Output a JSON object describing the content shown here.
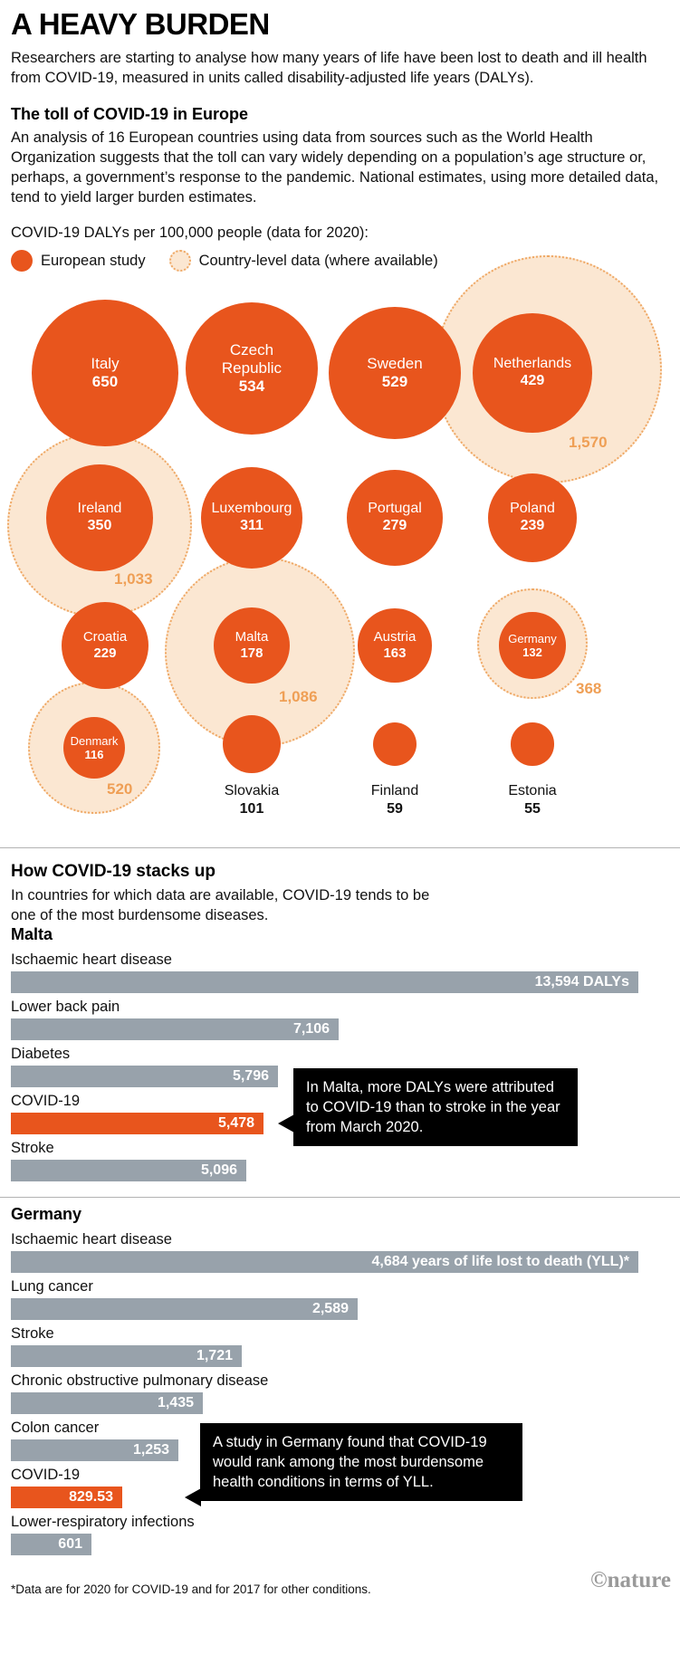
{
  "header": {
    "title": "A HEAVY BURDEN",
    "intro": "Researchers are starting to analyse how many years of life have been lost to death and ill health from COVID-19, measured in units called disability-adjusted life years (DALYs)."
  },
  "toll": {
    "heading": "The toll of COVID-19 in Europe",
    "body": "An analysis of 16 European countries using data from sources such as the World Health Organization suggests that the toll can vary widely depending on a population’s age structure or, perhaps, a government’s response to the pandemic. National estimates, using more detailed data, tend to yield larger burden estimates."
  },
  "legend": {
    "title": "COVID-19 DALYs per 100,000 people (data for 2020):",
    "items": [
      {
        "label": "European study",
        "swatch": "orange-filled-circle"
      },
      {
        "label": "Country-level data (where available)",
        "swatch": "peach-dotted-circle"
      }
    ]
  },
  "stacks": {
    "heading": "How COVID-19 stacks up",
    "body": "In countries for which data are available, COVID-19 tends to be one of the most burdensome diseases."
  },
  "chart_data": [
    {
      "type": "bubble",
      "title": "COVID-19 DALYs per 100,000 people (data for 2020)",
      "unit": "DALYs per 100,000 people",
      "series": [
        {
          "name": "European study",
          "color": "#E8551D"
        },
        {
          "name": "Country-level data (where available)",
          "color": "#FBE7D2"
        }
      ],
      "bubbles": [
        {
          "country": "Italy",
          "value": 650
        },
        {
          "country": "Czech Republic",
          "value": 534
        },
        {
          "country": "Sweden",
          "value": 529
        },
        {
          "country": "Netherlands",
          "value": 429,
          "country_level": 1570,
          "country_level_label": "1,570"
        },
        {
          "country": "Ireland",
          "value": 350,
          "country_level": 1033,
          "country_level_label": "1,033"
        },
        {
          "country": "Luxembourg",
          "value": 311
        },
        {
          "country": "Portugal",
          "value": 279
        },
        {
          "country": "Poland",
          "value": 239
        },
        {
          "country": "Croatia",
          "value": 229
        },
        {
          "country": "Malta",
          "value": 178,
          "country_level": 1086,
          "country_level_label": "1,086"
        },
        {
          "country": "Austria",
          "value": 163
        },
        {
          "country": "Germany",
          "value": 132,
          "country_level": 368,
          "country_level_label": "368"
        },
        {
          "country": "Denmark",
          "value": 116,
          "country_level": 520,
          "country_level_label": "520"
        },
        {
          "country": "Slovakia",
          "value": 101
        },
        {
          "country": "Finland",
          "value": 59
        },
        {
          "country": "Estonia",
          "value": 55
        }
      ]
    },
    {
      "type": "bar",
      "title": "Malta",
      "unit": "DALYs",
      "categories": [
        "Ischaemic heart disease",
        "Lower back pain",
        "Diabetes",
        "COVID-19",
        "Stroke"
      ],
      "values": [
        13594,
        7106,
        5796,
        5478,
        5096
      ],
      "value_labels": [
        "13,594 DALYs",
        "7,106",
        "5,796",
        "5,478",
        "5,096"
      ],
      "highlight": "COVID-19",
      "callout": "In Malta, more DALYs were attributed to COVID-19 than to stroke in the year from March 2020."
    },
    {
      "type": "bar",
      "title": "Germany",
      "unit": "years of life lost to death (YLL)",
      "categories": [
        "Ischaemic heart disease",
        "Lung cancer",
        "Stroke",
        "Chronic obstructive pulmonary disease",
        "Colon cancer",
        "COVID-19",
        "Lower-respiratory infections"
      ],
      "values": [
        4684,
        2589,
        1721,
        1435,
        1253,
        829.53,
        601
      ],
      "value_labels": [
        "4,684 years of life lost to death (YLL)*",
        "2,589",
        "1,721",
        "1,435",
        "1,253",
        "829.53",
        "601"
      ],
      "highlight": "COVID-19",
      "callout": "A study in Germany found that COVID-19 would rank among the most burdensome health conditions in terms of YLL."
    }
  ],
  "footer": {
    "footnote": "*Data are for 2020 for COVID-19 and for 2017 for other conditions.",
    "credit": "©nature"
  },
  "colors": {
    "orange": "#E8551D",
    "peach": "#FBE7D2",
    "peach_border": "#EFA763",
    "nat_label": "#EF9F55",
    "bar_gray": "#98A2AB",
    "callout_bg": "#000000"
  }
}
